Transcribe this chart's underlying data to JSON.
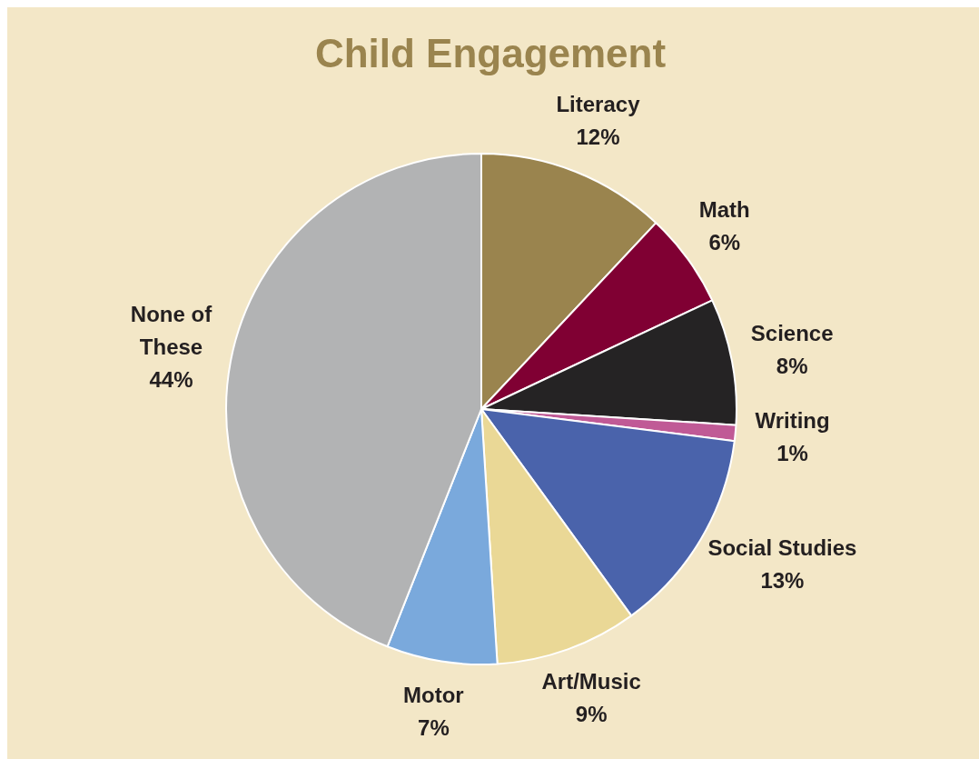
{
  "chart_data": {
    "type": "pie",
    "title": "Child Engagement",
    "categories": [
      "Literacy",
      "Math",
      "Science",
      "Writing",
      "Social Studies",
      "Art/Music",
      "Motor",
      "None of These"
    ],
    "values": [
      12,
      6,
      8,
      1,
      13,
      9,
      7,
      44
    ],
    "colors": [
      "#9a844e",
      "#800033",
      "#252324",
      "#c05a96",
      "#4a63ab",
      "#ead896",
      "#7aa9dc",
      "#b2b3b4"
    ],
    "value_labels": [
      "12%",
      "6%",
      "8%",
      "1%",
      "13%",
      "9%",
      "7%",
      "44%"
    ],
    "legend": false
  }
}
